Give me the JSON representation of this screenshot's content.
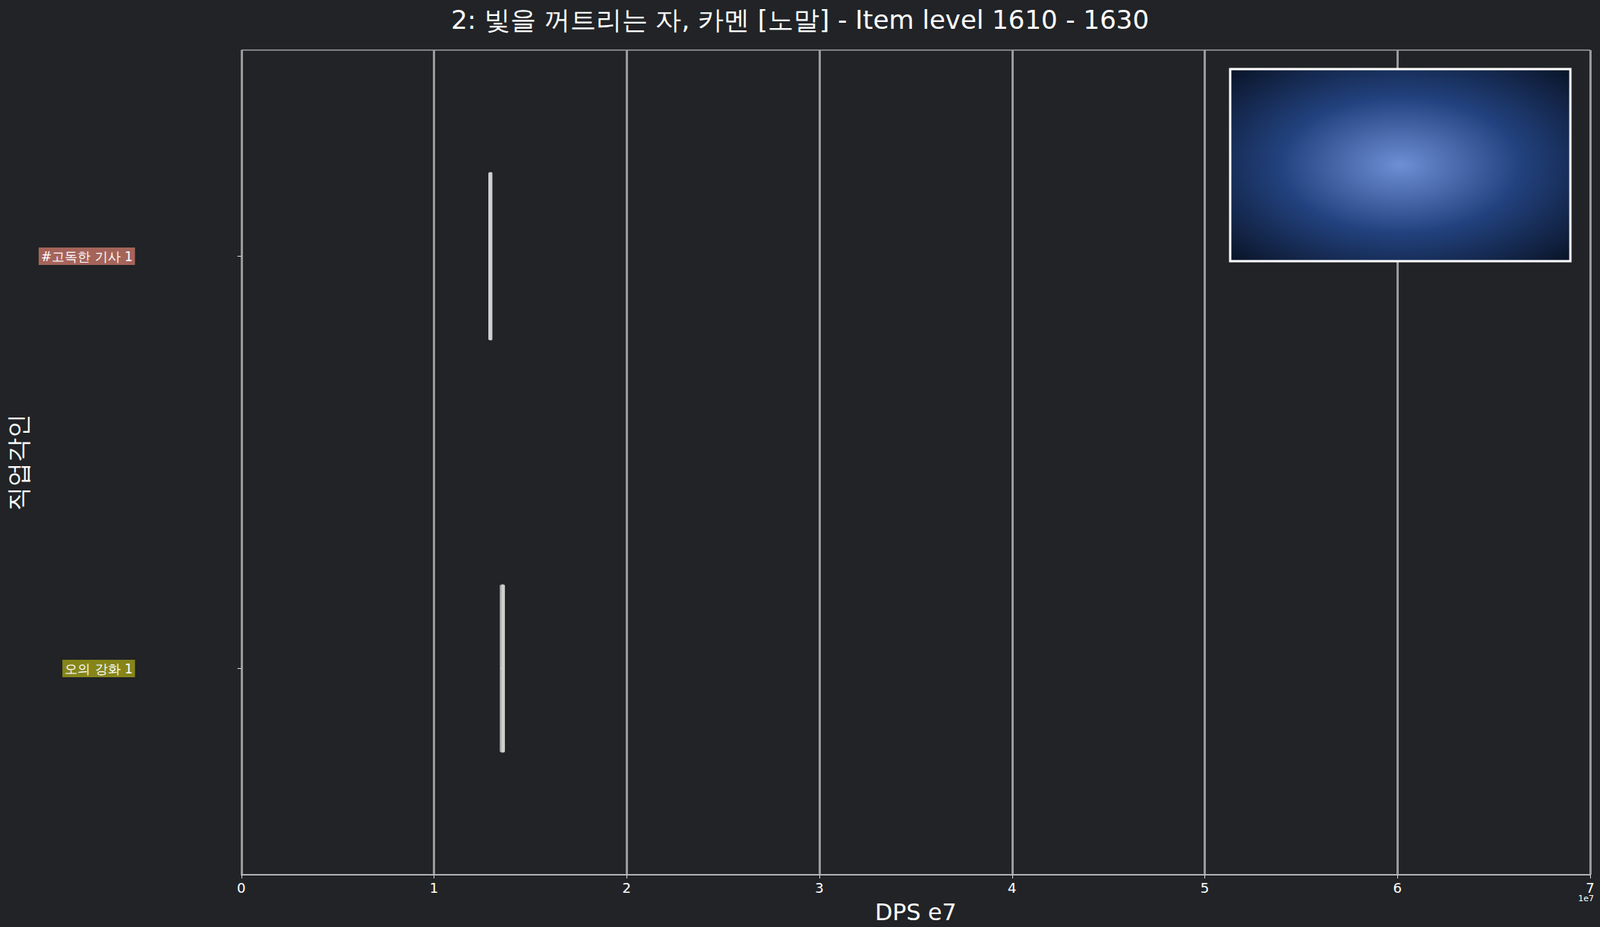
{
  "chart_data": {
    "type": "boxplot",
    "title": "2: 빛을 꺼트리는 자, 카멘 [노말] - Item level 1610 - 1630",
    "xlabel": "DPS e7",
    "ylabel": "직업각인",
    "orientation": "horizontal",
    "categories": [
      "#고독한 기사 1",
      "오의 강화 1"
    ],
    "values": [
      [
        1.285,
        1.29,
        1.293,
        1.297,
        1.3
      ],
      [
        1.345,
        1.352,
        1.356,
        1.36,
        1.365
      ]
    ],
    "color": "#d0d0d0",
    "colors": [
      "#a5645a",
      "#85851a"
    ],
    "xlim": [
      0,
      7
    ],
    "xticks": [
      0,
      1,
      2,
      3,
      4,
      5,
      6,
      7
    ],
    "grid": true,
    "annotations": [
      "1e7"
    ]
  }
}
